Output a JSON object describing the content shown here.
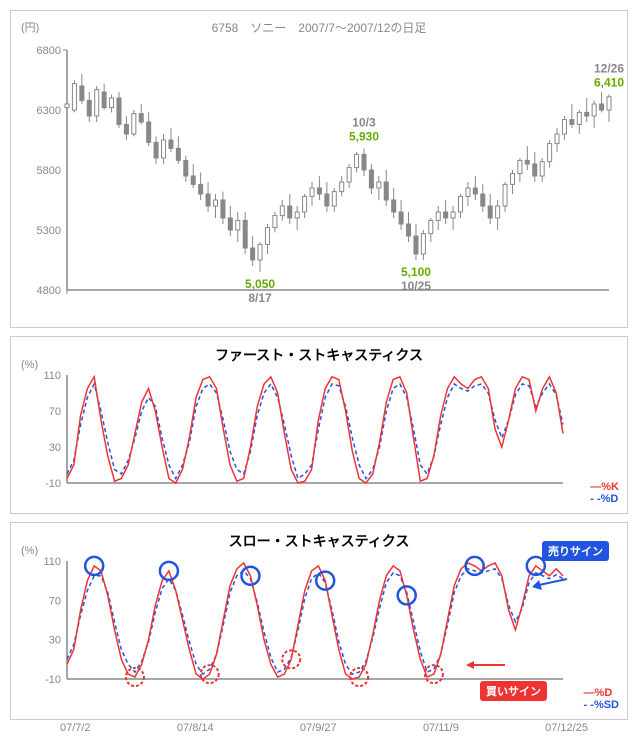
{
  "price": {
    "title": "6758　ソニー　2007/7～2007/12の日足",
    "yunit": "(円)",
    "ylim": [
      4800,
      6800
    ],
    "yticks": [
      4800,
      5300,
      5800,
      6300,
      6800
    ],
    "candle_stroke": "#888888",
    "candle_fill_up": "#ffffff",
    "candle_fill_down": "#888888",
    "background": "#ffffff",
    "axis_color": "#888888",
    "axis_fontsize": 11,
    "candles": [
      [
        6320,
        6420,
        6250,
        6350
      ],
      [
        6300,
        6550,
        6280,
        6520
      ],
      [
        6500,
        6600,
        6350,
        6380
      ],
      [
        6380,
        6450,
        6200,
        6250
      ],
      [
        6250,
        6500,
        6200,
        6470
      ],
      [
        6450,
        6520,
        6300,
        6320
      ],
      [
        6320,
        6430,
        6280,
        6400
      ],
      [
        6400,
        6450,
        6150,
        6180
      ],
      [
        6180,
        6250,
        6050,
        6100
      ],
      [
        6100,
        6300,
        6080,
        6270
      ],
      [
        6270,
        6350,
        6180,
        6200
      ],
      [
        6200,
        6280,
        6000,
        6030
      ],
      [
        6030,
        6080,
        5850,
        5900
      ],
      [
        5900,
        6100,
        5850,
        6050
      ],
      [
        6050,
        6150,
        5950,
        5980
      ],
      [
        5980,
        6080,
        5850,
        5880
      ],
      [
        5880,
        5920,
        5700,
        5750
      ],
      [
        5750,
        5850,
        5650,
        5680
      ],
      [
        5680,
        5780,
        5550,
        5600
      ],
      [
        5600,
        5700,
        5450,
        5500
      ],
      [
        5500,
        5600,
        5400,
        5550
      ],
      [
        5550,
        5620,
        5350,
        5400
      ],
      [
        5400,
        5500,
        5250,
        5300
      ],
      [
        5300,
        5450,
        5200,
        5380
      ],
      [
        5380,
        5450,
        5100,
        5150
      ],
      [
        5150,
        5250,
        5000,
        5050
      ],
      [
        5050,
        5200,
        4950,
        5180
      ],
      [
        5180,
        5350,
        5100,
        5320
      ],
      [
        5320,
        5450,
        5280,
        5420
      ],
      [
        5420,
        5550,
        5380,
        5500
      ],
      [
        5500,
        5600,
        5350,
        5400
      ],
      [
        5400,
        5500,
        5300,
        5450
      ],
      [
        5450,
        5600,
        5400,
        5580
      ],
      [
        5580,
        5700,
        5500,
        5650
      ],
      [
        5650,
        5750,
        5550,
        5600
      ],
      [
        5600,
        5700,
        5450,
        5500
      ],
      [
        5500,
        5650,
        5450,
        5620
      ],
      [
        5620,
        5750,
        5580,
        5700
      ],
      [
        5700,
        5850,
        5650,
        5820
      ],
      [
        5820,
        5950,
        5780,
        5930
      ],
      [
        5930,
        5980,
        5750,
        5800
      ],
      [
        5800,
        5850,
        5600,
        5650
      ],
      [
        5650,
        5750,
        5550,
        5700
      ],
      [
        5700,
        5800,
        5500,
        5550
      ],
      [
        5550,
        5650,
        5400,
        5450
      ],
      [
        5450,
        5550,
        5300,
        5350
      ],
      [
        5350,
        5450,
        5200,
        5250
      ],
      [
        5250,
        5350,
        5050,
        5100
      ],
      [
        5100,
        5300,
        5050,
        5270
      ],
      [
        5270,
        5400,
        5200,
        5380
      ],
      [
        5380,
        5500,
        5300,
        5450
      ],
      [
        5450,
        5550,
        5350,
        5400
      ],
      [
        5400,
        5500,
        5300,
        5450
      ],
      [
        5450,
        5600,
        5400,
        5580
      ],
      [
        5580,
        5700,
        5500,
        5650
      ],
      [
        5650,
        5750,
        5550,
        5600
      ],
      [
        5600,
        5680,
        5450,
        5500
      ],
      [
        5500,
        5600,
        5350,
        5400
      ],
      [
        5400,
        5550,
        5300,
        5500
      ],
      [
        5500,
        5700,
        5450,
        5680
      ],
      [
        5680,
        5800,
        5600,
        5770
      ],
      [
        5770,
        5900,
        5700,
        5880
      ],
      [
        5880,
        6000,
        5800,
        5850
      ],
      [
        5850,
        5950,
        5700,
        5750
      ],
      [
        5750,
        5900,
        5700,
        5870
      ],
      [
        5870,
        6050,
        5820,
        6020
      ],
      [
        6020,
        6150,
        5950,
        6100
      ],
      [
        6100,
        6250,
        6050,
        6220
      ],
      [
        6220,
        6350,
        6150,
        6180
      ],
      [
        6180,
        6300,
        6100,
        6280
      ],
      [
        6280,
        6400,
        6200,
        6250
      ],
      [
        6250,
        6380,
        6150,
        6350
      ],
      [
        6350,
        6450,
        6280,
        6300
      ],
      [
        6300,
        6430,
        6200,
        6410
      ]
    ],
    "annotations": [
      {
        "x": 26,
        "date": "8/17",
        "value": "5,050",
        "vy": "bottom"
      },
      {
        "x": 40,
        "date": "10/3",
        "value": "5,930",
        "vy": "top"
      },
      {
        "x": 47,
        "date": "10/25",
        "value": "5,100",
        "vy": "bottom"
      },
      {
        "x": 73,
        "date": "12/26",
        "value": "6,410",
        "vy": "top"
      }
    ],
    "annot_date_color": "#888888",
    "annot_value_color": "#66aa00",
    "annot_fontsize": 12
  },
  "fast": {
    "title": "ファースト・ストキャスティクス",
    "yunit": "(%)",
    "ylim": [
      -10,
      110
    ],
    "yticks": [
      -10,
      30,
      70,
      110
    ],
    "legend_k": "%K",
    "legend_d": "%D",
    "k_color": "#ee3333",
    "d_color": "#2255dd",
    "axis_color": "#888888",
    "k": [
      -5,
      10,
      65,
      95,
      108,
      60,
      20,
      -8,
      -5,
      10,
      45,
      80,
      95,
      70,
      30,
      -5,
      -10,
      5,
      40,
      85,
      105,
      108,
      95,
      50,
      10,
      -8,
      -5,
      30,
      75,
      100,
      108,
      90,
      45,
      5,
      -10,
      -8,
      5,
      60,
      95,
      108,
      105,
      70,
      25,
      -5,
      -10,
      0,
      35,
      80,
      105,
      108,
      90,
      40,
      -8,
      -5,
      20,
      65,
      95,
      108,
      100,
      95,
      105,
      108,
      95,
      50,
      30,
      60,
      95,
      108,
      105,
      70,
      95,
      108,
      90,
      45
    ],
    "d": [
      0,
      15,
      55,
      85,
      100,
      70,
      35,
      5,
      0,
      15,
      40,
      70,
      85,
      75,
      40,
      10,
      -5,
      10,
      35,
      75,
      95,
      100,
      90,
      60,
      25,
      5,
      0,
      25,
      65,
      90,
      100,
      85,
      55,
      20,
      -5,
      0,
      10,
      50,
      85,
      100,
      98,
      75,
      40,
      10,
      -5,
      5,
      30,
      70,
      95,
      100,
      85,
      50,
      10,
      0,
      20,
      55,
      85,
      100,
      95,
      92,
      98,
      100,
      90,
      60,
      40,
      60,
      88,
      100,
      98,
      75,
      90,
      100,
      88,
      55
    ]
  },
  "slow": {
    "title": "スロー・ストキャスティクス",
    "yunit": "(%)",
    "ylim": [
      -10,
      110
    ],
    "yticks": [
      -10,
      30,
      70,
      110
    ],
    "legend_k": "%D",
    "legend_d": "%SD",
    "k_color": "#ee3333",
    "d_color": "#2255dd",
    "axis_color": "#888888",
    "sell_label": "売りサイン",
    "buy_label": "買いサイン",
    "k": [
      5,
      20,
      60,
      90,
      105,
      100,
      75,
      40,
      10,
      -5,
      -8,
      5,
      30,
      65,
      90,
      100,
      80,
      50,
      20,
      -5,
      -10,
      -5,
      15,
      50,
      85,
      102,
      108,
      95,
      65,
      30,
      5,
      -8,
      -5,
      10,
      45,
      80,
      100,
      105,
      90,
      55,
      20,
      -5,
      -10,
      -8,
      5,
      35,
      70,
      95,
      105,
      100,
      75,
      40,
      10,
      -8,
      -5,
      15,
      50,
      85,
      102,
      108,
      105,
      100,
      105,
      108,
      95,
      60,
      40,
      65,
      95,
      105,
      100,
      95,
      102,
      95
    ],
    "d": [
      10,
      25,
      55,
      80,
      95,
      95,
      78,
      48,
      20,
      5,
      -3,
      8,
      28,
      58,
      82,
      92,
      80,
      55,
      28,
      5,
      -5,
      0,
      15,
      45,
      78,
      95,
      100,
      92,
      68,
      38,
      12,
      -3,
      0,
      12,
      40,
      72,
      92,
      98,
      88,
      60,
      28,
      5,
      -5,
      -3,
      8,
      32,
      62,
      88,
      98,
      95,
      78,
      48,
      18,
      -3,
      0,
      15,
      45,
      78,
      95,
      102,
      100,
      98,
      100,
      102,
      92,
      65,
      48,
      62,
      88,
      98,
      95,
      92,
      96,
      92
    ],
    "sell_circles": [
      4,
      15,
      27,
      38,
      50,
      60,
      69
    ],
    "buy_circles": [
      10,
      21,
      33,
      43,
      54
    ],
    "sell_circle_color": "#2255dd",
    "buy_circle_color": "#ee3333",
    "circle_radius": 9
  },
  "xaxis": {
    "labels": [
      "07/7/2",
      "07/8/14",
      "07/9/27",
      "07/11/9",
      "07/12/25"
    ],
    "color": "#888888",
    "fontsize": 11
  }
}
